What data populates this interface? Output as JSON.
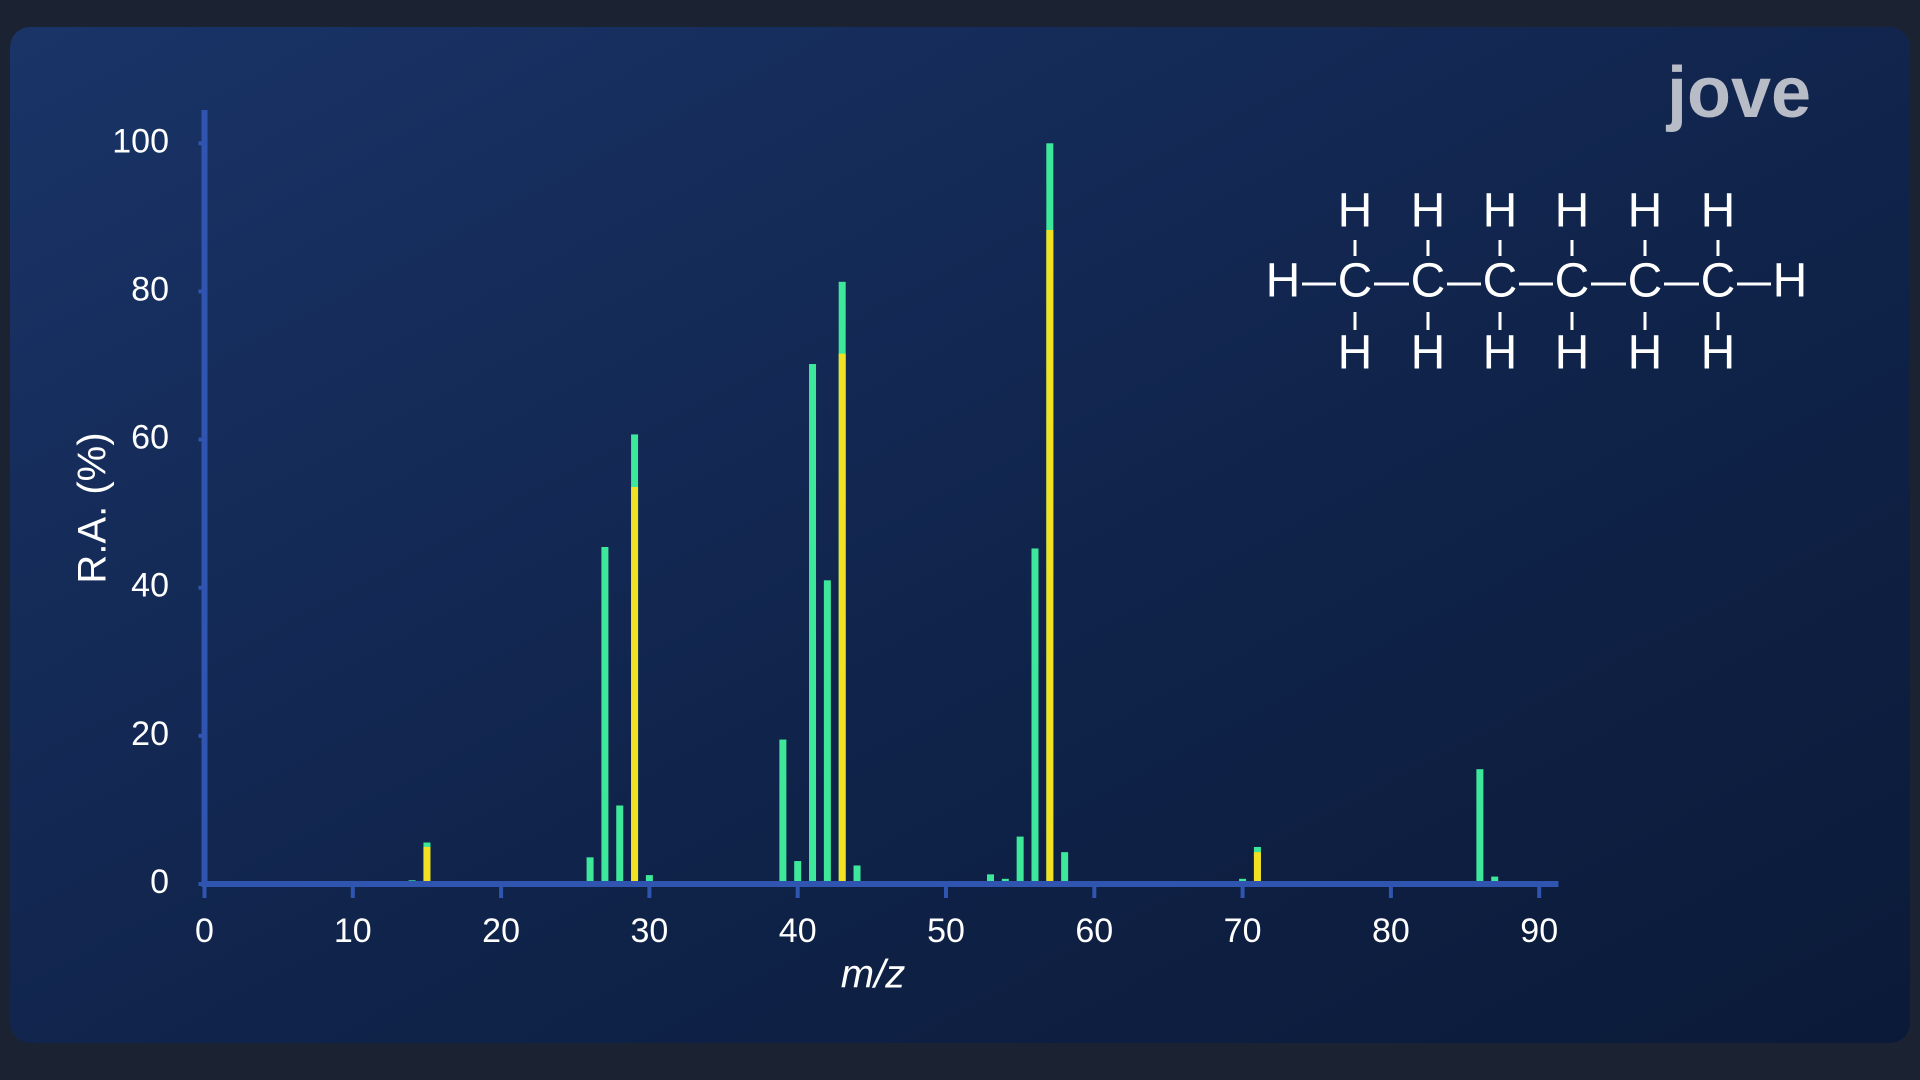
{
  "chart_data": {
    "type": "bar",
    "x_label": "m/z",
    "y_label": "R.A. (%)",
    "x": [
      14,
      15,
      26,
      27,
      28,
      29,
      30,
      39,
      40,
      41,
      42,
      43,
      44,
      53,
      54,
      55,
      56,
      57,
      58,
      70,
      71,
      86,
      87
    ],
    "series": [
      {
        "color": "#3ee89a",
        "values": [
          0.5,
          5.6,
          3.6,
          45.5,
          10.6,
          60.7,
          1.2,
          19.5,
          3.1,
          70.2,
          41,
          81.3,
          2.5,
          1.3,
          0.7,
          6.4,
          45.3,
          100,
          4.3,
          0.7,
          5.0,
          15.5,
          1.0
        ]
      },
      {
        "color": "#f2e022",
        "values": [
          null,
          5.0,
          null,
          null,
          null,
          53.6,
          null,
          null,
          null,
          null,
          null,
          71.6,
          null,
          null,
          null,
          null,
          null,
          88.3,
          null,
          null,
          4.3,
          null,
          null
        ]
      }
    ],
    "xlim": [
      0,
      91.3
    ],
    "ylim": [
      0,
      104.5
    ],
    "xticks": [
      0,
      10,
      20,
      30,
      40,
      50,
      60,
      70,
      80,
      90
    ],
    "yticks": [
      0,
      20,
      40,
      60,
      80,
      100
    ],
    "grid": false
  },
  "logo": "jove",
  "structure": {
    "top": [
      "H",
      "H",
      "H",
      "H",
      "H",
      "H"
    ],
    "middle": [
      "H",
      "C",
      "C",
      "C",
      "C",
      "C",
      "C",
      "H"
    ],
    "bottom": [
      "H",
      "H",
      "H",
      "H",
      "H",
      "H"
    ]
  }
}
